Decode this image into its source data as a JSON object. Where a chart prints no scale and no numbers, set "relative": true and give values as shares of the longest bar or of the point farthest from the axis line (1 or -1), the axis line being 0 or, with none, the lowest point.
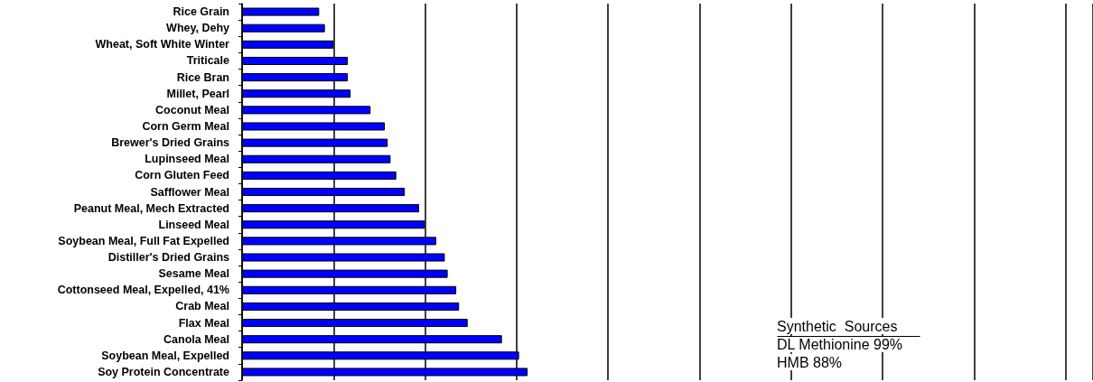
{
  "chart_data": {
    "type": "bar",
    "orientation": "horizontal",
    "relative": true,
    "grid": "x",
    "color": "#0000ff",
    "categories": [
      "Rice Grain",
      "Whey, Dehy",
      "Wheat, Soft White Winter",
      "Triticale",
      "Rice Bran",
      "Millet, Pearl",
      "Coconut Meal",
      "Corn Germ Meal",
      "Brewer's Dried Grains",
      "Lupinseed Meal",
      "Corn Gluten Feed",
      "Safflower Meal",
      "Peanut Meal, Mech Extracted",
      "Linseed Meal",
      "Soybean Meal, Full Fat Expelled",
      "Distiller's Dried Grains",
      "Sesame Meal",
      "Cottonseed Meal, Expelled, 41%",
      "Crab Meal",
      "Flax Meal",
      "Canola Meal",
      "Soybean Meal, Expelled",
      "Soy Protein Concentrate"
    ],
    "values": [
      0.27,
      0.29,
      0.32,
      0.37,
      0.37,
      0.38,
      0.45,
      0.5,
      0.51,
      0.52,
      0.54,
      0.57,
      0.62,
      0.64,
      0.68,
      0.71,
      0.72,
      0.75,
      0.76,
      0.79,
      0.91,
      0.97,
      1
    ],
    "annotations": [
      "Synthetic  Sources",
      "DL Methionine 99%",
      "HMB 88%"
    ]
  }
}
